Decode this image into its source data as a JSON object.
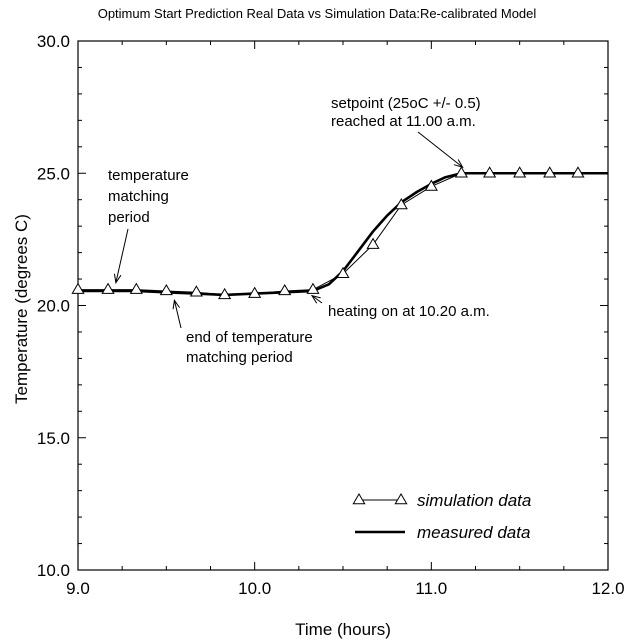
{
  "chart_data": {
    "type": "line",
    "title": "Optimum Start Prediction Real Data vs Simulation Data:Re-calibrated Model",
    "xlabel": "Time (hours)",
    "ylabel": "Temperature (degrees C)",
    "xlim": [
      9.0,
      12.0
    ],
    "ylim": [
      10.0,
      30.0
    ],
    "x_ticks": [
      "9.0",
      "10.0",
      "11.0",
      "12.0"
    ],
    "y_ticks": [
      "10.0",
      "15.0",
      "20.0",
      "25.0",
      "30.0"
    ],
    "grid": false,
    "legend_position": "bottom-right",
    "series": [
      {
        "name": "simulation data",
        "marker": "triangle",
        "x": [
          9.0,
          9.17,
          9.33,
          9.5,
          9.67,
          9.83,
          10.0,
          10.17,
          10.33,
          10.5,
          10.67,
          10.83,
          11.0,
          11.17,
          11.33,
          11.5,
          11.67,
          11.83
        ],
        "y": [
          20.6,
          20.6,
          20.6,
          20.55,
          20.5,
          20.4,
          20.45,
          20.55,
          20.6,
          21.2,
          22.3,
          23.8,
          24.5,
          25.0,
          25.0,
          25.0,
          25.0,
          25.0
        ]
      },
      {
        "name": "measured data",
        "x": [
          9.0,
          9.17,
          9.33,
          9.5,
          9.67,
          9.83,
          10.0,
          10.17,
          10.33,
          10.42,
          10.5,
          10.58,
          10.67,
          10.75,
          10.83,
          10.92,
          11.0,
          11.08,
          11.17,
          11.25,
          11.33,
          11.5,
          11.67,
          11.83,
          12.0
        ],
        "y": [
          20.55,
          20.55,
          20.55,
          20.5,
          20.45,
          20.4,
          20.45,
          20.5,
          20.55,
          20.8,
          21.3,
          22.0,
          22.8,
          23.4,
          23.9,
          24.3,
          24.6,
          24.85,
          25.0,
          25.0,
          25.0,
          25.0,
          25.0,
          25.0,
          25.0
        ]
      }
    ],
    "annotations": [
      {
        "lines": [
          "setpoint (25oC +/- 0.5)",
          "reached at 11.00 a.m."
        ],
        "x": 11.2,
        "y": 25.0
      },
      {
        "lines": [
          "temperature",
          "matching",
          "period"
        ],
        "x": 9.22,
        "y": 20.6
      },
      {
        "lines": [
          "end of temperature",
          "matching period"
        ],
        "x": 9.54,
        "y": 20.5
      },
      {
        "lines": [
          "heating on at 10.20 a.m."
        ],
        "x": 10.33,
        "y": 20.6
      }
    ]
  }
}
